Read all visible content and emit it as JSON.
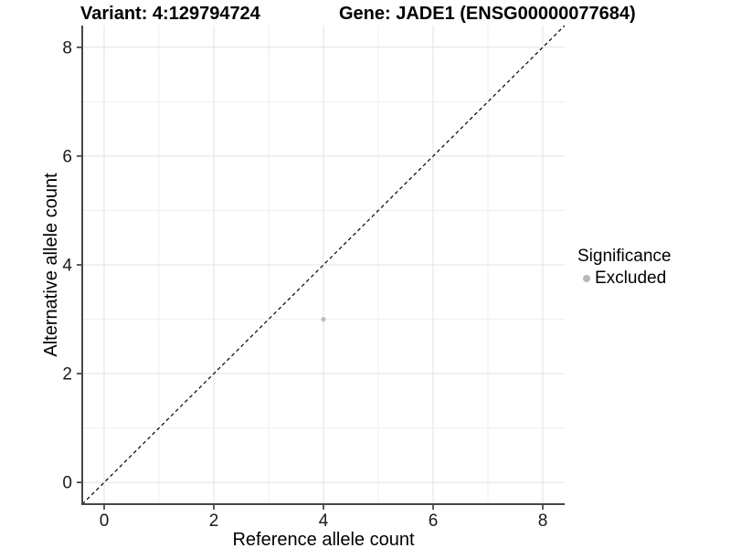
{
  "header": {
    "title_variant": "Variant: 4:129794724",
    "title_gene": "Gene: JADE1 (ENSG00000077684)"
  },
  "chart_data": {
    "type": "scatter",
    "title_variant": "Variant: 4:129794724",
    "title_gene": "Gene: JADE1 (ENSG00000077684)",
    "xlabel": "Reference allele count",
    "ylabel": "Alternative allele count",
    "xlim": [
      -0.4,
      8.4
    ],
    "ylim": [
      -0.4,
      8.4
    ],
    "x_ticks": [
      0,
      2,
      4,
      6,
      8
    ],
    "y_ticks": [
      0,
      2,
      4,
      6,
      8
    ],
    "x_minor_ticks": [
      1,
      3,
      5,
      7
    ],
    "y_minor_ticks": [
      1,
      3,
      5,
      7
    ],
    "grid": "on",
    "colors": {
      "major_grid": "#e4e4e4",
      "minor_grid": "#efefef",
      "axis_line": "#474747",
      "tick_mark": "#333333",
      "tick_label": "#1a1a1a",
      "point": "#bebebe",
      "reference_line": "#000000"
    },
    "reference_line": {
      "equation": "y = x",
      "slope": 1,
      "intercept": 0,
      "style": "dashed"
    },
    "series": [
      {
        "name": "Excluded",
        "color": "#bebebe",
        "points": [
          {
            "x": 4,
            "y": 3
          }
        ]
      }
    ],
    "legend": {
      "title": "Significance",
      "position": "right",
      "entries": [
        {
          "label": "Excluded",
          "color": "#b8b8b8"
        }
      ]
    }
  }
}
